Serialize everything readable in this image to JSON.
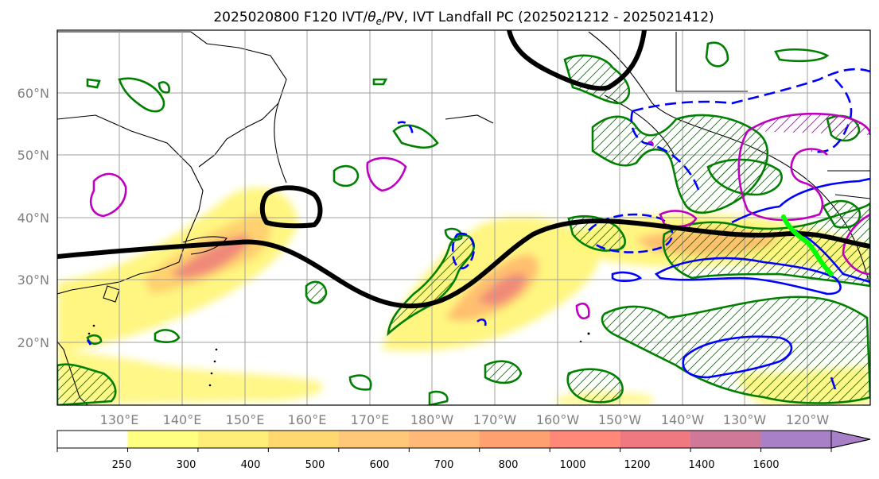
{
  "title": "2025020800 F120 IVT/θe/PV, IVT Landfall PC (2025021212 - 2025021412)",
  "title_parts": {
    "prefix": "2025020800 F120 IVT/",
    "theta": "θ",
    "theta_sub": "e",
    "suffix": "/PV, IVT Landfall PC (2025021212 - 2025021412)"
  },
  "map": {
    "projection": "PlateCarree",
    "lon_range": [
      120,
      250
    ],
    "lat_range": [
      10,
      70
    ],
    "grid": true,
    "grid_color": "#a0a0a0",
    "lat_labels": [
      "20°N",
      "30°N",
      "40°N",
      "50°N",
      "60°N"
    ],
    "lon_labels": [
      "130°E",
      "140°E",
      "150°E",
      "160°E",
      "170°E",
      "180°W",
      "170°W",
      "160°W",
      "150°W",
      "140°W",
      "130°W",
      "120°W"
    ],
    "contour_colors": {
      "ivt_pc_positive": "#008000",
      "ivt_pc_negative": "#0000ff",
      "theta_e": "#c000c0",
      "pv": "#000000",
      "landfall": "#00ff00"
    }
  },
  "colorbar": {
    "levels": [
      "250",
      "300",
      "400",
      "500",
      "600",
      "700",
      "800",
      "1000",
      "1200",
      "1400",
      "1600"
    ],
    "colors": [
      "#ffffff",
      "#ffff80",
      "#ffee78",
      "#ffd870",
      "#ffc878",
      "#ffb878",
      "#ffa070",
      "#ff8878",
      "#f07880",
      "#d07898",
      "#a880c8"
    ],
    "extend": "max"
  }
}
